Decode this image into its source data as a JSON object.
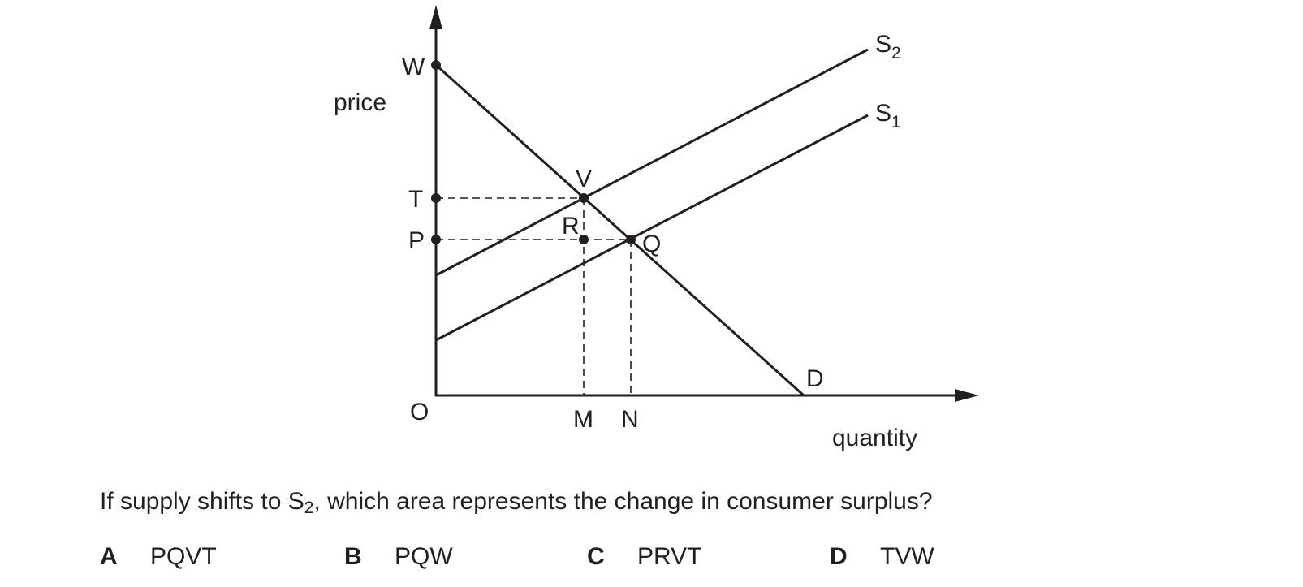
{
  "diagram": {
    "y_axis_label": "price",
    "x_axis_label": "quantity",
    "origin_label": "O",
    "price_labels": {
      "w": "W",
      "t": "T",
      "p": "P"
    },
    "quantity_labels": {
      "m": "M",
      "n": "N"
    },
    "point_labels": {
      "v": "V",
      "r": "R",
      "q": "Q",
      "d": "D"
    },
    "curve_labels": {
      "s2": {
        "letter": "S",
        "sub": "2"
      },
      "s1": {
        "letter": "S",
        "sub": "1"
      }
    }
  },
  "question": {
    "before": "If supply shifts to S",
    "sub": "2",
    "after": ", which area represents the change in consumer surplus?"
  },
  "options": [
    {
      "letter": "A",
      "text": "PQVT"
    },
    {
      "letter": "B",
      "text": "PQW"
    },
    {
      "letter": "C",
      "text": "PRVT"
    },
    {
      "letter": "D",
      "text": "TVW"
    }
  ]
}
